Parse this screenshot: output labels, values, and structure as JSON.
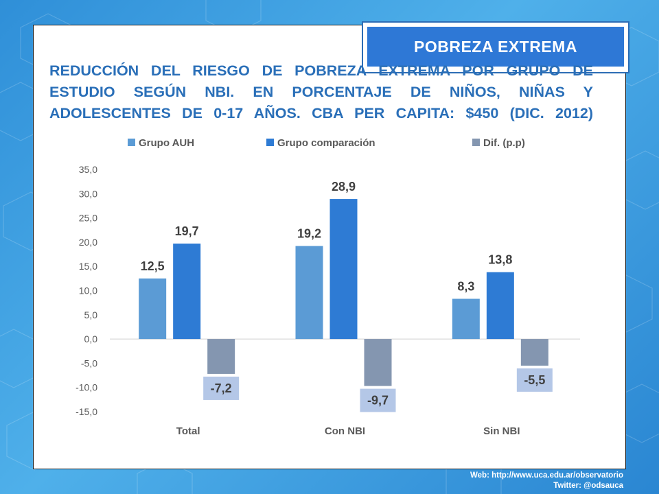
{
  "badge": {
    "label": "POBREZA EXTREMA"
  },
  "title": {
    "line1": "REDUCCIÓN DEL RIESGO DE POBREZA EXTREMA POR GRUPO DE",
    "line2": "ESTUDIO SEGÚN NBI. EN PORCENTAJE DE NIÑOS, NIÑAS Y",
    "line3": "ADOLESCENTES DE 0-17 AÑOS.  CBA PER CAPITA: $450 (DIC. 2012)"
  },
  "chart_data": {
    "type": "bar",
    "categories": [
      "Total",
      "Con NBI",
      "Sin NBI"
    ],
    "series": [
      {
        "name": "Grupo AUH",
        "values": [
          12.5,
          19.2,
          8.3
        ],
        "labels": [
          "12,5",
          "19,2",
          "8,3"
        ],
        "color": "#5b9bd5"
      },
      {
        "name": "Grupo comparación",
        "values": [
          19.7,
          28.9,
          13.8
        ],
        "labels": [
          "19,7",
          "28,9",
          "13,8"
        ],
        "color": "#2e7bd4"
      },
      {
        "name": "Dif. (p.p)",
        "values": [
          -7.2,
          -9.7,
          -5.5
        ],
        "labels": [
          "-7,2",
          "-9,7",
          "-5,5"
        ],
        "color": "#8496b0"
      }
    ],
    "ylim": [
      -15,
      35
    ],
    "yticks": [
      "35,0",
      "30,0",
      "25,0",
      "20,0",
      "15,0",
      "10,0",
      "5,0",
      "0,0",
      "-5,0",
      "-10,0",
      "-15,0"
    ],
    "ytick_values": [
      35,
      30,
      25,
      20,
      15,
      10,
      5,
      0,
      -5,
      -10,
      -15
    ],
    "legend_position": "top",
    "grid": false,
    "label_box_color": "#b4c7e7"
  },
  "footer": {
    "web": "Web: http://www.uca.edu.ar/observatorio",
    "twitter": "Twitter: @odsauca"
  }
}
